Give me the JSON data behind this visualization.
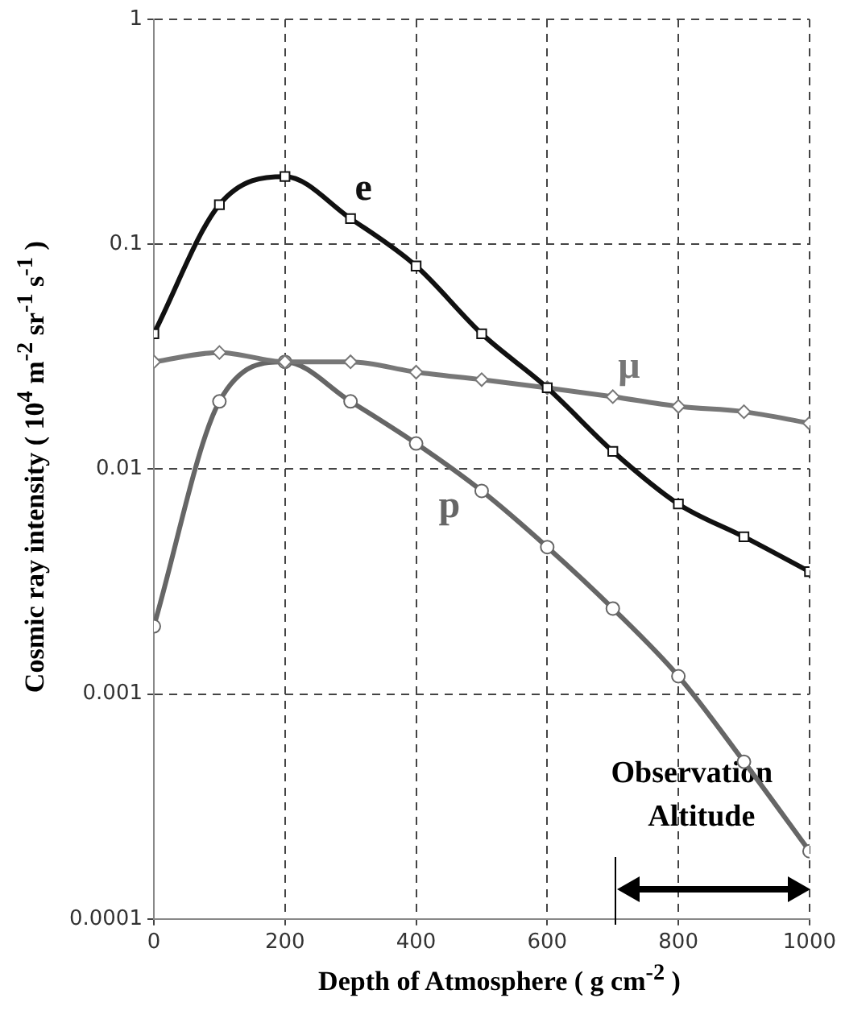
{
  "chart_data": {
    "type": "line",
    "xlabel": "Depth of Atmosphere ( g cm$^{-2}$ )",
    "ylabel": "Cosmic ray intensity ( 10$^{4}$ m$^{-2}$ sr$^{-1}$ s$^{-1}$ )",
    "x": [
      0,
      100,
      200,
      300,
      400,
      500,
      600,
      700,
      800,
      900,
      1000
    ],
    "series": [
      {
        "name": "e",
        "color": "#111111",
        "marker": "square",
        "values": [
          0.04,
          0.15,
          0.2,
          0.13,
          0.08,
          0.04,
          0.023,
          0.012,
          0.007,
          0.005,
          0.0035
        ]
      },
      {
        "name": "μ",
        "color": "#777777",
        "marker": "diamond",
        "values": [
          0.03,
          0.033,
          0.03,
          0.03,
          0.027,
          0.025,
          0.023,
          0.021,
          0.019,
          0.018,
          0.016
        ]
      },
      {
        "name": "p",
        "color": "#666666",
        "marker": "circle",
        "values": [
          0.002,
          0.02,
          0.03,
          0.02,
          0.013,
          0.008,
          0.0045,
          0.0024,
          0.0012,
          0.0005,
          0.0002
        ]
      }
    ],
    "log": "y",
    "xlim": [
      0,
      1000
    ],
    "xticks": [
      0,
      200,
      400,
      600,
      800,
      1000
    ],
    "ylim": [
      0.0001,
      1
    ],
    "yticks": [
      0.0001,
      0.001,
      0.01,
      0.1,
      1
    ],
    "grid": true,
    "legend": false,
    "annotations": [
      "Observation Altitude"
    ]
  }
}
